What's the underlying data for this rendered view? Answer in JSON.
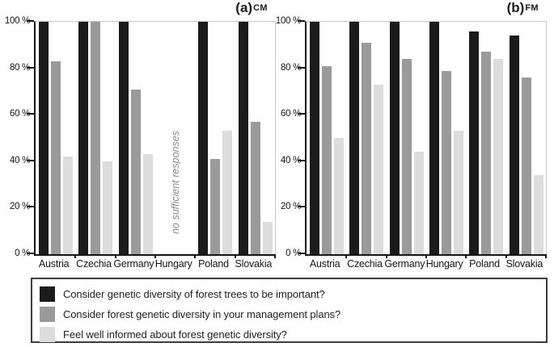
{
  "figure": {
    "background": "#ffffff"
  },
  "chart_data": [
    {
      "type": "bar",
      "panel_label": "(a)",
      "panel_tag": "CM",
      "categories": [
        "Austria",
        "Czechia",
        "Germany",
        "Hungary",
        "Poland",
        "Slovakia"
      ],
      "series": [
        {
          "name": "Consider genetic diversity of forest trees to be important?",
          "color": "#1b1b1b",
          "values": [
            100,
            100,
            100,
            null,
            100,
            100
          ]
        },
        {
          "name": "Consider forest genetic diversity in your management plans?",
          "color": "#9a9a9a",
          "values": [
            83,
            100,
            71,
            null,
            41,
            57
          ]
        },
        {
          "name": "Feel well informed about forest genetic diversity?",
          "color": "#dcdcdc",
          "values": [
            42,
            40,
            43,
            null,
            53,
            14
          ]
        }
      ],
      "annotation": {
        "text": "no sufficient responses",
        "category_index": 3
      },
      "y_ticks": [
        "0 %",
        "20 %",
        "40 %",
        "60 %",
        "80 %",
        "100 %"
      ],
      "ylim": [
        0,
        100
      ],
      "grid": "off",
      "legend_position": "bottom"
    },
    {
      "type": "bar",
      "panel_label": "(b)",
      "panel_tag": "FM",
      "categories": [
        "Austria",
        "Czechia",
        "Germany",
        "Hungary",
        "Poland",
        "Slovakia"
      ],
      "series": [
        {
          "name": "Consider genetic diversity of forest trees to be important?",
          "color": "#1b1b1b",
          "values": [
            100,
            100,
            100,
            100,
            96,
            94
          ]
        },
        {
          "name": "Consider forest genetic diversity in your management plans?",
          "color": "#9a9a9a",
          "values": [
            81,
            91,
            84,
            79,
            87,
            76
          ]
        },
        {
          "name": "Feel well informed about forest genetic diversity?",
          "color": "#dcdcdc",
          "values": [
            50,
            73,
            44,
            53,
            84,
            34
          ]
        }
      ],
      "annotation": null,
      "y_ticks": [
        "0 %",
        "20 %",
        "40 %",
        "60 %",
        "80 %",
        "100 %"
      ],
      "ylim": [
        0,
        100
      ],
      "grid": "off",
      "legend_position": "bottom"
    }
  ],
  "legend": {
    "border_color": "#3c3c3c",
    "items": [
      {
        "label": "Consider genetic diversity of forest trees to be important?",
        "color": "#1b1b1b"
      },
      {
        "label": "Consider forest genetic diversity in your management plans?",
        "color": "#9a9a9a"
      },
      {
        "label": "Feel well informed about forest genetic diversity?",
        "color": "#dcdcdc"
      }
    ]
  }
}
